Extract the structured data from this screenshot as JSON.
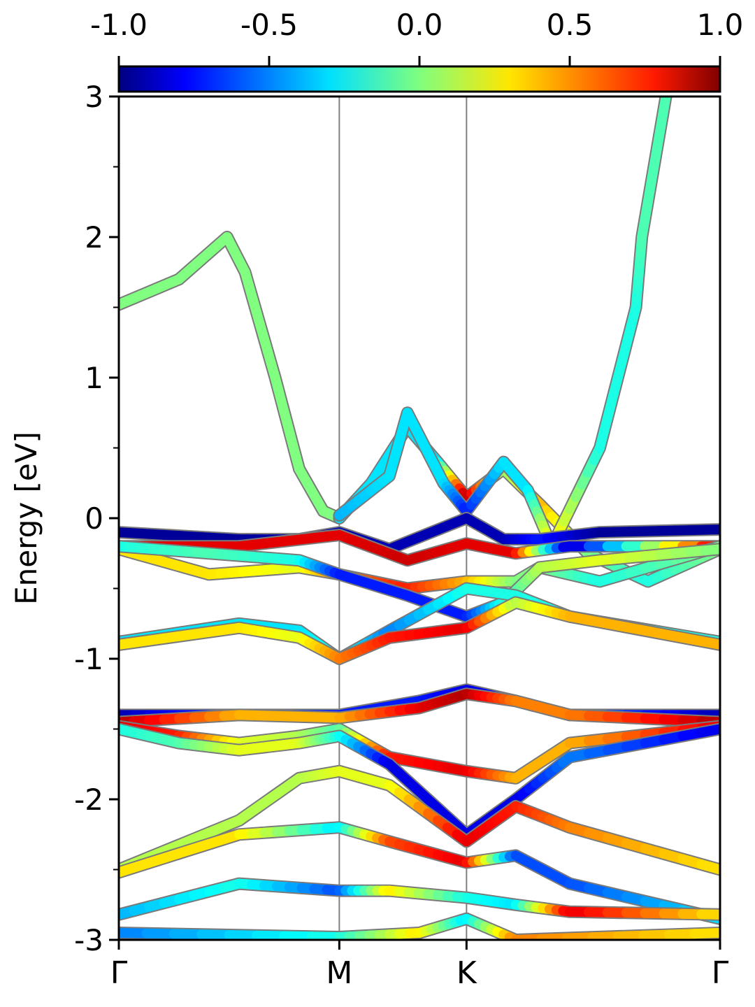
{
  "chart_data": {
    "type": "line",
    "title": "",
    "xlabel": "",
    "ylabel": "Energy [eV]",
    "ylim": [
      -3,
      3
    ],
    "yticks": [
      -3,
      -2,
      -1,
      0,
      1,
      2,
      3
    ],
    "xticks": [
      {
        "label": "Γ",
        "x": 0.0
      },
      {
        "label": "M",
        "x": 0.3667
      },
      {
        "label": "K",
        "x": 0.5783
      },
      {
        "label": "Γ",
        "x": 1.0
      }
    ],
    "high_symmetry_lines": [
      "M",
      "K"
    ],
    "colorbar": {
      "colormap": "jet",
      "range": [
        -1.0,
        1.0
      ],
      "ticks": [
        "-1.0",
        "-0.5",
        "0.0",
        "0.5",
        "1.0"
      ],
      "placement": "top"
    },
    "series": [
      {
        "points": [
          [
            0.0,
            1.52,
            0.0
          ],
          [
            0.1,
            1.7,
            0.0
          ],
          [
            0.18,
            2.0,
            0.0
          ],
          [
            0.21,
            1.75,
            0.0
          ],
          [
            0.26,
            1.0,
            0.0
          ],
          [
            0.3,
            0.35,
            0.0
          ],
          [
            0.34,
            0.05,
            0.0
          ],
          [
            0.3667,
            0.0,
            0.0
          ]
        ]
      },
      {
        "points": [
          [
            0.3667,
            0.0,
            -0.3
          ],
          [
            0.42,
            0.25,
            -0.3
          ],
          [
            0.48,
            0.65,
            -0.3
          ],
          [
            0.53,
            0.4,
            -0.3
          ],
          [
            0.5783,
            0.15,
            0.9
          ],
          [
            0.64,
            0.35,
            0.0
          ],
          [
            0.7,
            0.1,
            0.4
          ],
          [
            0.78,
            -0.25,
            0.0
          ],
          [
            0.88,
            -0.45,
            -0.2
          ],
          [
            1.0,
            -0.22,
            0.0
          ]
        ]
      },
      {
        "points": [
          [
            0.3667,
            0.02,
            -0.4
          ],
          [
            0.45,
            0.3,
            -0.3
          ],
          [
            0.48,
            0.75,
            -0.3
          ],
          [
            0.54,
            0.25,
            -0.3
          ],
          [
            0.5783,
            0.05,
            -0.7
          ],
          [
            0.64,
            0.4,
            -0.3
          ],
          [
            0.68,
            0.2,
            -0.3
          ],
          [
            0.72,
            -0.2,
            0.3
          ],
          [
            0.8,
            0.5,
            -0.2
          ],
          [
            0.86,
            1.5,
            -0.2
          ],
          [
            0.87,
            2.0,
            -0.1
          ],
          [
            0.91,
            3.0,
            -0.1
          ]
        ]
      },
      {
        "points": [
          [
            0.0,
            -0.1,
            -0.95
          ],
          [
            0.2,
            -0.15,
            -0.95
          ],
          [
            0.3,
            -0.15,
            -0.9
          ],
          [
            0.3667,
            -0.1,
            -0.9
          ],
          [
            0.45,
            -0.22,
            -0.9
          ],
          [
            0.5783,
            0.0,
            -0.9
          ],
          [
            0.64,
            -0.15,
            -0.9
          ],
          [
            0.7,
            -0.15,
            -0.7
          ],
          [
            0.8,
            -0.1,
            -0.95
          ],
          [
            1.0,
            -0.08,
            -0.95
          ]
        ]
      },
      {
        "points": [
          [
            0.0,
            -0.2,
            0.8
          ],
          [
            0.2,
            -0.2,
            0.8
          ],
          [
            0.3667,
            -0.12,
            0.8
          ],
          [
            0.48,
            -0.3,
            0.85
          ],
          [
            0.5783,
            -0.18,
            0.8
          ],
          [
            0.66,
            -0.25,
            0.8
          ],
          [
            0.75,
            -0.2,
            -0.9
          ],
          [
            1.0,
            -0.2,
            0.8
          ]
        ]
      },
      {
        "points": [
          [
            0.0,
            -0.22,
            0.3
          ],
          [
            0.15,
            -0.4,
            0.3
          ],
          [
            0.3,
            -0.35,
            0.2
          ],
          [
            0.3667,
            -0.4,
            0.5
          ],
          [
            0.48,
            -0.5,
            0.7
          ],
          [
            0.5783,
            -0.45,
            0.4
          ],
          [
            0.66,
            -0.45,
            0.0
          ],
          [
            0.7,
            -0.35,
            0.0
          ],
          [
            0.8,
            -0.45,
            -0.2
          ],
          [
            1.0,
            -0.2,
            0.0
          ]
        ]
      },
      {
        "points": [
          [
            0.0,
            -0.2,
            -0.2
          ],
          [
            0.15,
            -0.25,
            -0.1
          ],
          [
            0.3,
            -0.3,
            -0.2
          ],
          [
            0.3667,
            -0.4,
            -0.7
          ],
          [
            0.48,
            -0.55,
            -0.7
          ],
          [
            0.5783,
            -0.7,
            -0.7
          ],
          [
            0.64,
            -0.6,
            -0.2
          ],
          [
            0.7,
            -0.35,
            0.1
          ],
          [
            0.8,
            -0.3,
            0.2
          ],
          [
            1.0,
            -0.22,
            0.0
          ]
        ]
      },
      {
        "points": [
          [
            0.0,
            -0.88,
            -0.3
          ],
          [
            0.2,
            -0.75,
            -0.3
          ],
          [
            0.3,
            -0.8,
            -0.3
          ],
          [
            0.3667,
            -1.0,
            -0.2
          ],
          [
            0.45,
            -0.8,
            -0.5
          ],
          [
            0.5783,
            -0.5,
            -0.2
          ],
          [
            0.66,
            -0.55,
            -0.2
          ],
          [
            0.75,
            -0.7,
            -0.2
          ],
          [
            1.0,
            -0.88,
            -0.2
          ]
        ]
      },
      {
        "points": [
          [
            0.0,
            -0.9,
            0.3
          ],
          [
            0.2,
            -0.78,
            0.3
          ],
          [
            0.3,
            -0.85,
            0.2
          ],
          [
            0.3667,
            -1.0,
            0.5
          ],
          [
            0.45,
            -0.85,
            0.7
          ],
          [
            0.5783,
            -0.78,
            0.8
          ],
          [
            0.66,
            -0.6,
            0.1
          ],
          [
            0.75,
            -0.7,
            0.4
          ],
          [
            1.0,
            -0.9,
            0.4
          ]
        ]
      },
      {
        "points": [
          [
            0.0,
            -1.4,
            -0.9
          ],
          [
            0.2,
            -1.4,
            -0.6
          ],
          [
            0.3667,
            -1.4,
            -0.7
          ],
          [
            0.5,
            -1.3,
            -0.7
          ],
          [
            0.5783,
            -1.22,
            -0.8
          ],
          [
            0.66,
            -1.3,
            -0.7
          ],
          [
            0.75,
            -1.4,
            -0.5
          ],
          [
            1.0,
            -1.4,
            -0.9
          ]
        ]
      },
      {
        "points": [
          [
            0.0,
            -1.45,
            0.9
          ],
          [
            0.2,
            -1.4,
            0.4
          ],
          [
            0.3667,
            -1.42,
            0.4
          ],
          [
            0.5,
            -1.35,
            0.8
          ],
          [
            0.5783,
            -1.25,
            0.9
          ],
          [
            0.66,
            -1.3,
            0.5
          ],
          [
            0.75,
            -1.4,
            0.5
          ],
          [
            1.0,
            -1.45,
            0.9
          ]
        ]
      },
      {
        "points": [
          [
            0.0,
            -1.48,
            0.8
          ],
          [
            0.1,
            -1.55,
            0.7
          ],
          [
            0.2,
            -1.6,
            0.2
          ],
          [
            0.3,
            -1.55,
            0.1
          ],
          [
            0.3667,
            -1.5,
            -0.1
          ],
          [
            0.45,
            -1.7,
            0.7
          ],
          [
            0.5783,
            -1.8,
            0.8
          ],
          [
            0.66,
            -1.85,
            0.4
          ],
          [
            0.75,
            -1.6,
            0.4
          ],
          [
            1.0,
            -1.48,
            0.8
          ]
        ]
      },
      {
        "points": [
          [
            0.0,
            -1.5,
            -0.2
          ],
          [
            0.1,
            -1.6,
            -0.1
          ],
          [
            0.2,
            -1.65,
            0.2
          ],
          [
            0.3,
            -1.6,
            0.2
          ],
          [
            0.3667,
            -1.55,
            -0.2
          ],
          [
            0.45,
            -1.75,
            -0.8
          ],
          [
            0.5783,
            -2.25,
            -0.8
          ],
          [
            0.66,
            -2.0,
            -0.8
          ],
          [
            0.75,
            -1.7,
            -0.5
          ],
          [
            1.0,
            -1.5,
            -0.8
          ]
        ]
      },
      {
        "points": [
          [
            0.0,
            -2.5,
            0.1
          ],
          [
            0.2,
            -2.15,
            0.1
          ],
          [
            0.3,
            -1.85,
            0.1
          ],
          [
            0.3667,
            -1.8,
            0.2
          ],
          [
            0.45,
            -1.9,
            0.2
          ],
          [
            0.5783,
            -2.3,
            0.8
          ],
          [
            0.66,
            -2.05,
            0.7
          ],
          [
            0.75,
            -2.2,
            0.5
          ],
          [
            1.0,
            -2.5,
            0.3
          ]
        ]
      },
      {
        "points": [
          [
            0.0,
            -2.52,
            0.3
          ],
          [
            0.2,
            -2.25,
            0.3
          ],
          [
            0.3667,
            -2.2,
            -0.3
          ],
          [
            0.45,
            -2.3,
            0.6
          ],
          [
            0.5783,
            -2.45,
            0.8
          ],
          [
            0.66,
            -2.4,
            -0.6
          ],
          [
            0.75,
            -2.6,
            -0.6
          ],
          [
            1.0,
            -2.85,
            -0.3
          ]
        ]
      },
      {
        "points": [
          [
            0.0,
            -2.82,
            -0.4
          ],
          [
            0.2,
            -2.6,
            -0.2
          ],
          [
            0.3667,
            -2.65,
            -0.6
          ],
          [
            0.45,
            -2.65,
            0.3
          ],
          [
            0.5783,
            -2.7,
            -0.2
          ],
          [
            0.66,
            -2.75,
            -0.3
          ],
          [
            0.75,
            -2.8,
            0.8
          ],
          [
            1.0,
            -2.82,
            0.3
          ]
        ]
      },
      {
        "points": [
          [
            0.0,
            -2.95,
            -0.5
          ],
          [
            0.3667,
            -2.98,
            -0.2
          ],
          [
            0.5,
            -2.95,
            0.3
          ],
          [
            0.5783,
            -2.85,
            -0.3
          ],
          [
            0.66,
            -3.0,
            0.5
          ],
          [
            1.0,
            -2.95,
            0.3
          ]
        ]
      }
    ]
  }
}
